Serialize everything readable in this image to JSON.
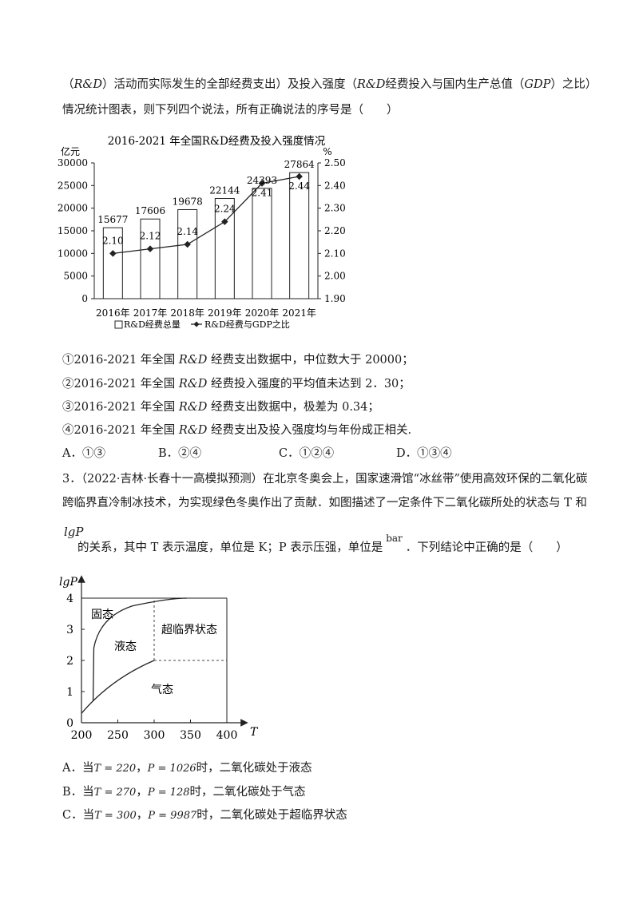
{
  "doc": {
    "intro": {
      "p1": "（",
      "p2": "R&D",
      "p3": "）活动而实际发生的全部经费支出）及投入强度（",
      "p4": "R&D",
      "p5": "经费投入与国内生产总值（",
      "p6": "GDP",
      "p7": "）之比）",
      "line2": "情况统计图表，则下列四个说法，所有正确说法的序号是（　　）"
    },
    "s1": {
      "a": "①2016-2021 年全国 ",
      "b": "R&D",
      "c": " 经费支出数据中，中位数大于 20000；"
    },
    "s2": {
      "a": "②2016-2021 年全国 ",
      "b": "R&D",
      "c": " 经费投入强度的平均值未达到 2．30；"
    },
    "s3": {
      "a": "③2016-2021 年全国 ",
      "b": "R&D",
      "c": " 经费支出数据中，极差为 0.34；"
    },
    "s4": {
      "a": "④2016-2021 年全国 ",
      "b": "R&D",
      "c": " 经费支出及投入强度均与年份成正相关."
    },
    "q2_options": [
      "A．①③",
      "B．②④",
      "C．①②④",
      "D．①③④"
    ],
    "q3": {
      "line1": "3．（2022·吉林·长春十一高模拟预测）在北京冬奥会上，国家速滑馆“冰丝带”使用高效环保的二氧化碳",
      "line2": "跨临界直冷制冰技术，为实现绿色冬奥作出了贡献．如图描述了一定条件下二氧化碳所处的状态与 T 和",
      "lgP": "lgP",
      "line3a": "的关系，其中 T 表示温度，单位是 K；P 表示压强，单位是",
      "bar": "bar",
      "line3b": "．下列结论中正确的是（　　）"
    },
    "q3_options": [
      {
        "pre": "A．当",
        "t": "T = 220",
        "sep": "，",
        "p": "P = 1026",
        "post": "时，二氧化碳处于液态"
      },
      {
        "pre": "B．当",
        "t": "T = 270",
        "sep": "，",
        "p": "P = 128",
        "post": "时，二氧化碳处于气态"
      },
      {
        "pre": "C．当",
        "t": "T = 300",
        "sep": "，",
        "p": "P = 9987",
        "post": "时，二氧化碳处于超临界状态"
      }
    ]
  },
  "chart_data": [
    {
      "type": "bar+line",
      "title": "2016-2021 年全国R&D经费及投入强度情况",
      "left_unit": "亿元",
      "right_unit": "%",
      "categories": [
        "2016年",
        "2017年",
        "2018年",
        "2019年",
        "2020年",
        "2021年"
      ],
      "series": [
        {
          "name": "R&D经费总量",
          "axis": "left",
          "values": [
            15677,
            17606,
            19678,
            22144,
            24393,
            27864
          ]
        },
        {
          "name": "R&D经费与GDP之比",
          "axis": "right",
          "values": [
            2.1,
            2.12,
            2.14,
            2.24,
            2.41,
            2.44
          ]
        }
      ],
      "left_ticks": [
        0,
        5000,
        10000,
        15000,
        20000,
        25000,
        30000
      ],
      "right_ticks": [
        "1.90",
        "2.00",
        "2.10",
        "2.20",
        "2.30",
        "2.40",
        "2.50"
      ],
      "ylim_left": [
        0,
        30000
      ],
      "ylim_right": [
        1.9,
        2.5
      ],
      "legend_position": "bottom"
    },
    {
      "type": "phase-diagram",
      "xlabel": "T",
      "ylabel": "lgP",
      "x_ticks": [
        200,
        250,
        300,
        350,
        400
      ],
      "y_ticks": [
        0,
        1,
        2,
        3,
        4
      ],
      "xlim": [
        200,
        400
      ],
      "ylim": [
        0,
        4
      ],
      "regions": [
        "固态",
        "液态",
        "超临界状态",
        "气态"
      ],
      "triple_point": [
        216,
        0.7
      ],
      "critical_point": [
        300,
        2
      ]
    }
  ]
}
